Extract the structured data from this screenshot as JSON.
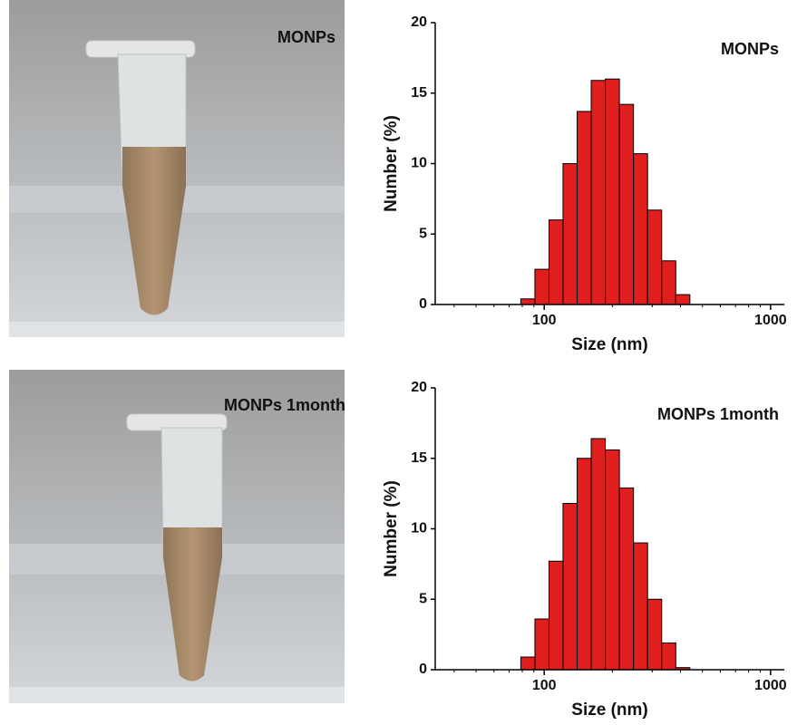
{
  "photos": [
    {
      "label": "MONPs"
    },
    {
      "label": "MONPs 1month"
    }
  ],
  "chart_data": [
    {
      "type": "histogram",
      "title": "MONPs",
      "xlabel": "Size (nm)",
      "ylabel": "Number (%)",
      "bins": [
        78.8,
        91.0,
        105.0,
        121.1,
        139.8,
        161.3,
        186.2,
        214.9,
        248.0,
        286.2,
        330.3,
        381.2,
        439.9
      ],
      "values": [
        0.4,
        2.5,
        6,
        10,
        13.7,
        15.9,
        16,
        14.2,
        10.7,
        6.7,
        3.1,
        0.7
      ],
      "color": "#e01e1e",
      "log_x": true,
      "xlim": [
        33,
        1150
      ],
      "ylim": [
        0,
        20
      ],
      "xticks": [
        100,
        1000
      ],
      "xminorticks": [
        40,
        50,
        60,
        70,
        80,
        90,
        200,
        300,
        400,
        500,
        600,
        700,
        800,
        900
      ],
      "yticks": [
        0,
        5,
        10,
        15,
        20
      ]
    },
    {
      "type": "histogram",
      "title": "MONPs 1month",
      "xlabel": "Size (nm)",
      "ylabel": "Number (%)",
      "bins": [
        78.8,
        91.0,
        105.0,
        121.1,
        139.8,
        161.3,
        186.2,
        214.9,
        248.0,
        286.2,
        330.3,
        381.2,
        439.9
      ],
      "values": [
        0.9,
        3.6,
        7.7,
        11.8,
        15,
        16.4,
        15.6,
        12.9,
        9,
        5,
        1.9,
        0.15
      ],
      "color": "#e01e1e",
      "log_x": true,
      "xlim": [
        33,
        1150
      ],
      "ylim": [
        0,
        20
      ],
      "xticks": [
        100,
        1000
      ],
      "xminorticks": [
        40,
        50,
        60,
        70,
        80,
        90,
        200,
        300,
        400,
        500,
        600,
        700,
        800,
        900
      ],
      "yticks": [
        0,
        5,
        10,
        15,
        20
      ]
    }
  ]
}
